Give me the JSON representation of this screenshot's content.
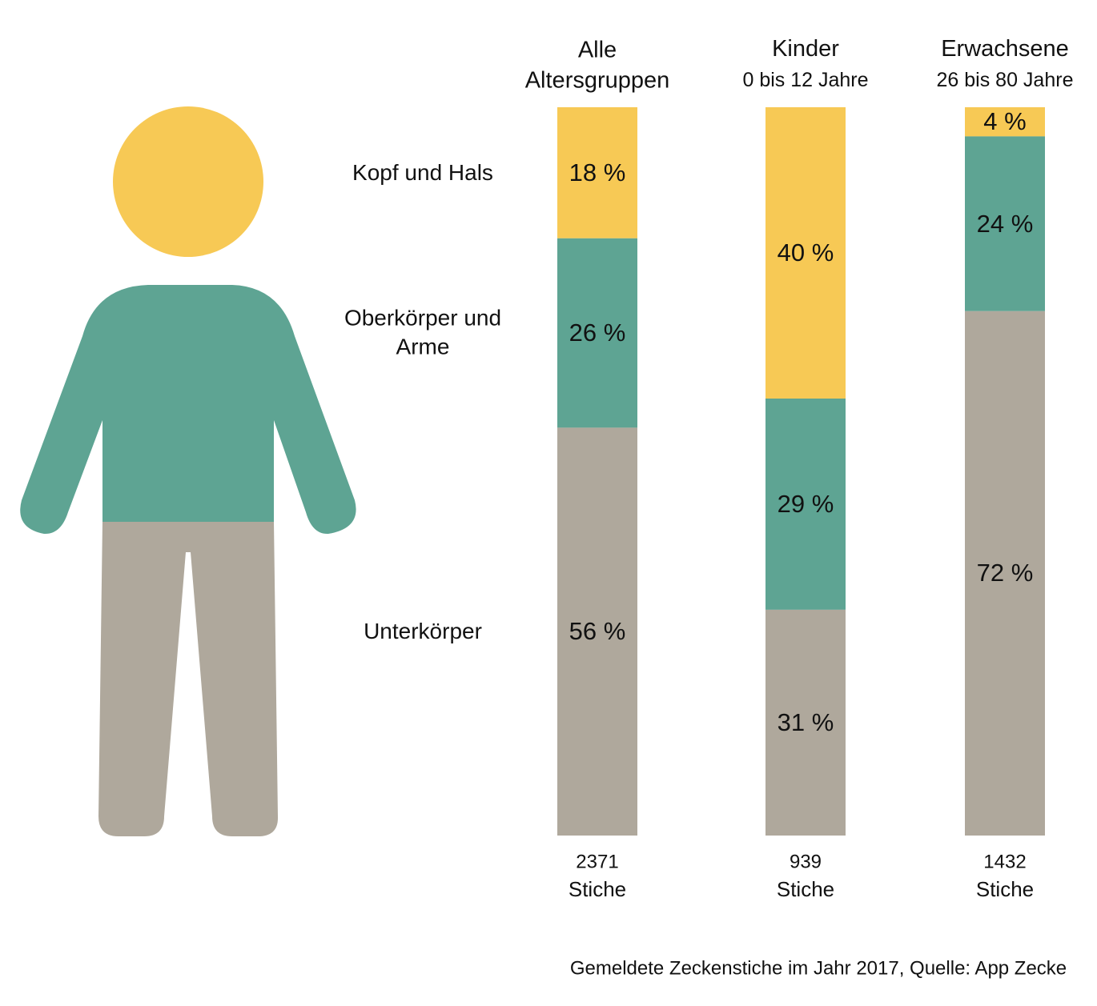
{
  "chart_data": {
    "type": "stacked_bar",
    "categories": [
      "Alle Altersgruppen",
      "Kinder",
      "Erwachsene"
    ],
    "category_subtitles": [
      null,
      "0 bis 12 Jahre",
      "26 bis 80 Jahre"
    ],
    "counts": [
      2371,
      939,
      1432
    ],
    "count_label": "Stiche",
    "ylim": [
      0,
      100
    ],
    "series": [
      {
        "name": "Kopf und Hals",
        "color": "#f7c955",
        "values": [
          18,
          40,
          4
        ],
        "value_labels": [
          "18 %",
          "40 %",
          "4 %"
        ]
      },
      {
        "name": "Oberkörper und Arme",
        "color": "#5ea493",
        "values": [
          26,
          29,
          24
        ],
        "value_labels": [
          "26 %",
          "29 %",
          "24 %"
        ]
      },
      {
        "name": "Unterkörper",
        "color": "#afa89c",
        "values": [
          56,
          31,
          72
        ],
        "value_labels": [
          "56 %",
          "31 %",
          "72 %"
        ]
      }
    ],
    "source": "Gemeldete Zeckenstiche im Jahr 2017, Quelle: App Zecke"
  }
}
